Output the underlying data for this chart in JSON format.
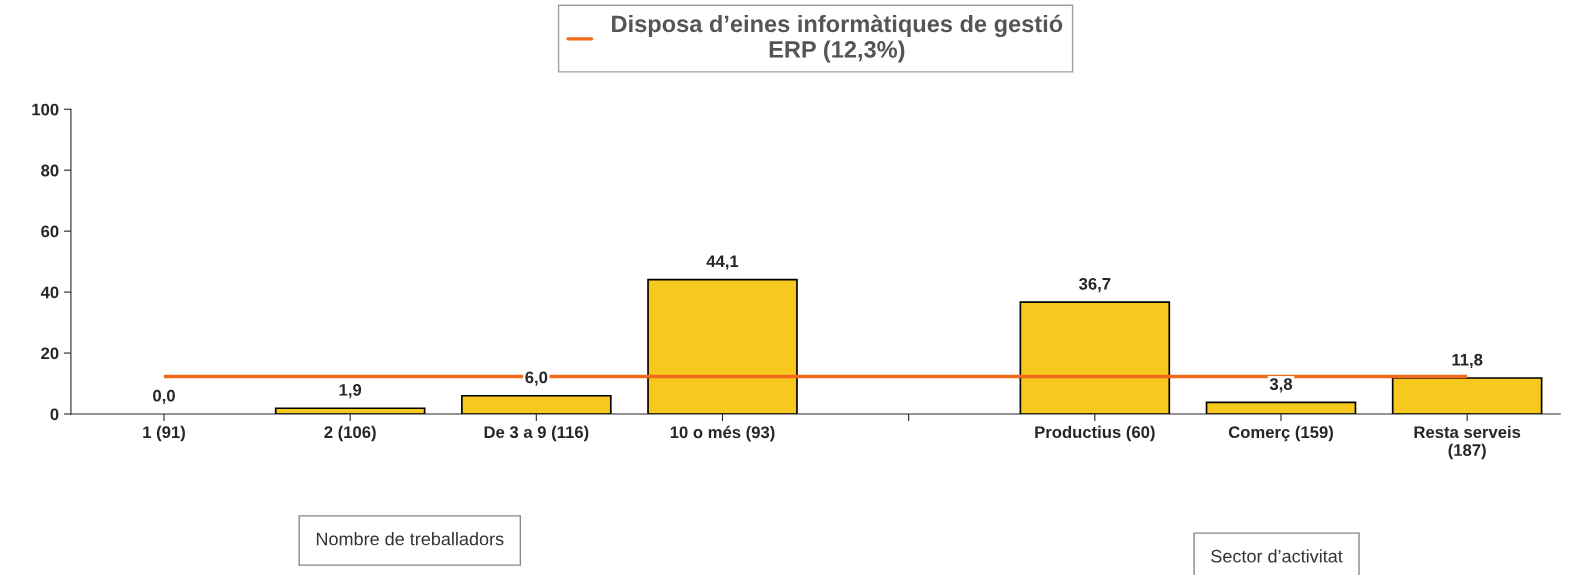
{
  "chart_data": {
    "type": "bar",
    "categories": [
      "1 (91)",
      "2 (106)",
      "De 3 a 9 (116)",
      "10 o més (93)",
      null,
      "Productius (60)",
      "Comerç (159)",
      "Resta serveis\n(187)"
    ],
    "values": [
      0.0,
      1.9,
      6.0,
      44.1,
      null,
      36.7,
      3.8,
      11.8
    ],
    "value_labels": [
      "0,0",
      "1,9",
      "6,0",
      "44,1",
      null,
      "36,7",
      "3,8",
      "11,8"
    ],
    "color": "#f7c81e",
    "ylim": [
      0,
      100
    ],
    "yticks": [
      0,
      20,
      40,
      60,
      80,
      100
    ],
    "grid": false,
    "legend": "top",
    "ref_lines": [
      {
        "axis": "y",
        "value": 12.3,
        "label": "Disposa d’eines informàtiques de gestió\nERP (12,3%)",
        "color": "#f26a1b"
      }
    ],
    "annotations": [
      "Nombre de treballadors",
      "Sector d’activitat"
    ]
  }
}
